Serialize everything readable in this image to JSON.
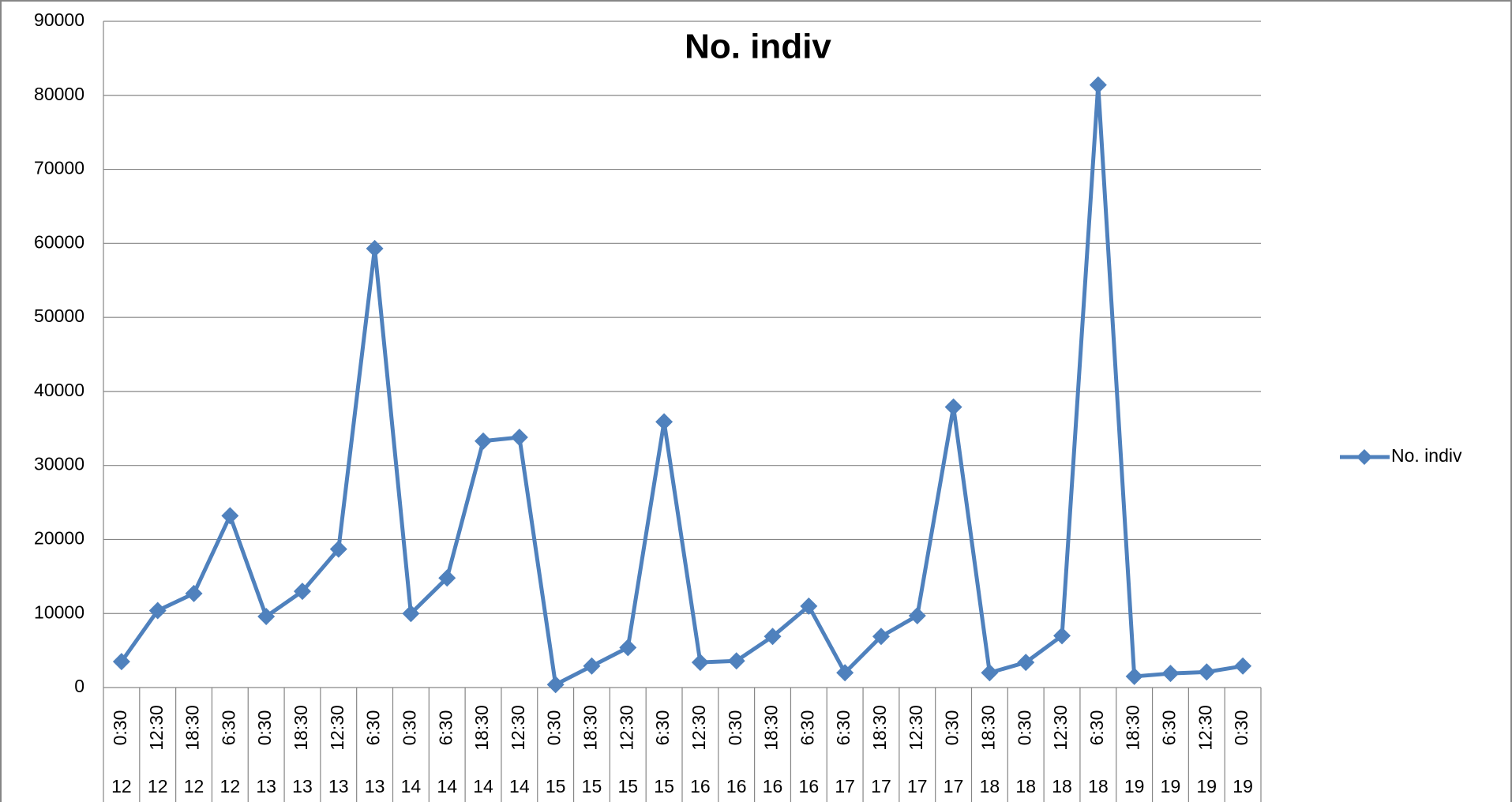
{
  "chart_data": {
    "type": "line",
    "title": "No. indiv",
    "categories": [
      "0:30",
      "12:30",
      "18:30",
      "6:30",
      "0:30",
      "18:30",
      "12:30",
      "6:30",
      "0:30",
      "6:30",
      "18:30",
      "12:30",
      "0:30",
      "18:30",
      "12:30",
      "6:30",
      "12:30",
      "0:30",
      "18:30",
      "6:30",
      "6:30",
      "18:30",
      "12:30",
      "0:30",
      "18:30",
      "0:30",
      "12:30",
      "6:30",
      "18:30",
      "6:30",
      "12:30",
      "0:30"
    ],
    "category_days": [
      "12",
      "12",
      "12",
      "12",
      "13",
      "13",
      "13",
      "13",
      "14",
      "14",
      "14",
      "14",
      "15",
      "15",
      "15",
      "15",
      "16",
      "16",
      "16",
      "16",
      "17",
      "17",
      "17",
      "17",
      "18",
      "18",
      "18",
      "18",
      "19",
      "19",
      "19",
      "19"
    ],
    "series": [
      {
        "name": "No. indiv",
        "color": "#4f81bd",
        "values": [
          3500,
          10400,
          12700,
          23200,
          9600,
          13000,
          18700,
          59300,
          10000,
          14800,
          33300,
          33800,
          400,
          2900,
          5400,
          35900,
          3400,
          3600,
          6900,
          11000,
          2000,
          6900,
          9700,
          37900,
          2000,
          3400,
          7000,
          81400,
          1500,
          1900,
          2100,
          2900
        ]
      }
    ],
    "ylim": [
      0,
      90000
    ],
    "yticks": [
      0,
      10000,
      20000,
      30000,
      40000,
      50000,
      60000,
      70000,
      80000,
      90000
    ],
    "grid": true,
    "legend": "right"
  }
}
